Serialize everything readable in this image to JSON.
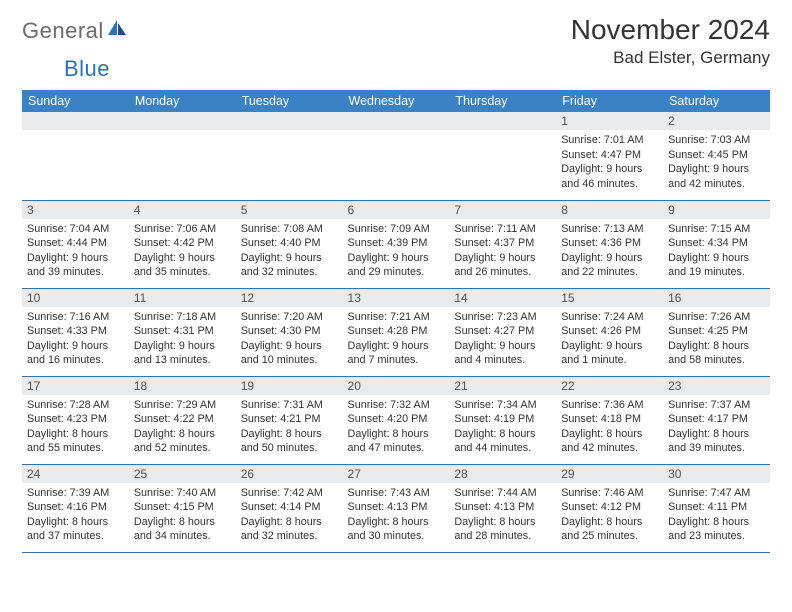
{
  "brand": {
    "word1": "General",
    "word2": "Blue",
    "logo_color": "#2f6fb3"
  },
  "title": "November 2024",
  "location": "Bad Elster, Germany",
  "colors": {
    "header_bg": "#3b82c4",
    "header_fg": "#ffffff",
    "daynum_bg": "#e9eaeb",
    "border": "#3b6fa8",
    "background": "#ffffff"
  },
  "day_labels": [
    "Sunday",
    "Monday",
    "Tuesday",
    "Wednesday",
    "Thursday",
    "Friday",
    "Saturday"
  ],
  "weeks": [
    [
      null,
      null,
      null,
      null,
      null,
      {
        "n": "1",
        "sr": "Sunrise: 7:01 AM",
        "ss": "Sunset: 4:47 PM",
        "d1": "Daylight: 9 hours",
        "d2": "and 46 minutes."
      },
      {
        "n": "2",
        "sr": "Sunrise: 7:03 AM",
        "ss": "Sunset: 4:45 PM",
        "d1": "Daylight: 9 hours",
        "d2": "and 42 minutes."
      }
    ],
    [
      {
        "n": "3",
        "sr": "Sunrise: 7:04 AM",
        "ss": "Sunset: 4:44 PM",
        "d1": "Daylight: 9 hours",
        "d2": "and 39 minutes."
      },
      {
        "n": "4",
        "sr": "Sunrise: 7:06 AM",
        "ss": "Sunset: 4:42 PM",
        "d1": "Daylight: 9 hours",
        "d2": "and 35 minutes."
      },
      {
        "n": "5",
        "sr": "Sunrise: 7:08 AM",
        "ss": "Sunset: 4:40 PM",
        "d1": "Daylight: 9 hours",
        "d2": "and 32 minutes."
      },
      {
        "n": "6",
        "sr": "Sunrise: 7:09 AM",
        "ss": "Sunset: 4:39 PM",
        "d1": "Daylight: 9 hours",
        "d2": "and 29 minutes."
      },
      {
        "n": "7",
        "sr": "Sunrise: 7:11 AM",
        "ss": "Sunset: 4:37 PM",
        "d1": "Daylight: 9 hours",
        "d2": "and 26 minutes."
      },
      {
        "n": "8",
        "sr": "Sunrise: 7:13 AM",
        "ss": "Sunset: 4:36 PM",
        "d1": "Daylight: 9 hours",
        "d2": "and 22 minutes."
      },
      {
        "n": "9",
        "sr": "Sunrise: 7:15 AM",
        "ss": "Sunset: 4:34 PM",
        "d1": "Daylight: 9 hours",
        "d2": "and 19 minutes."
      }
    ],
    [
      {
        "n": "10",
        "sr": "Sunrise: 7:16 AM",
        "ss": "Sunset: 4:33 PM",
        "d1": "Daylight: 9 hours",
        "d2": "and 16 minutes."
      },
      {
        "n": "11",
        "sr": "Sunrise: 7:18 AM",
        "ss": "Sunset: 4:31 PM",
        "d1": "Daylight: 9 hours",
        "d2": "and 13 minutes."
      },
      {
        "n": "12",
        "sr": "Sunrise: 7:20 AM",
        "ss": "Sunset: 4:30 PM",
        "d1": "Daylight: 9 hours",
        "d2": "and 10 minutes."
      },
      {
        "n": "13",
        "sr": "Sunrise: 7:21 AM",
        "ss": "Sunset: 4:28 PM",
        "d1": "Daylight: 9 hours",
        "d2": "and 7 minutes."
      },
      {
        "n": "14",
        "sr": "Sunrise: 7:23 AM",
        "ss": "Sunset: 4:27 PM",
        "d1": "Daylight: 9 hours",
        "d2": "and 4 minutes."
      },
      {
        "n": "15",
        "sr": "Sunrise: 7:24 AM",
        "ss": "Sunset: 4:26 PM",
        "d1": "Daylight: 9 hours",
        "d2": "and 1 minute."
      },
      {
        "n": "16",
        "sr": "Sunrise: 7:26 AM",
        "ss": "Sunset: 4:25 PM",
        "d1": "Daylight: 8 hours",
        "d2": "and 58 minutes."
      }
    ],
    [
      {
        "n": "17",
        "sr": "Sunrise: 7:28 AM",
        "ss": "Sunset: 4:23 PM",
        "d1": "Daylight: 8 hours",
        "d2": "and 55 minutes."
      },
      {
        "n": "18",
        "sr": "Sunrise: 7:29 AM",
        "ss": "Sunset: 4:22 PM",
        "d1": "Daylight: 8 hours",
        "d2": "and 52 minutes."
      },
      {
        "n": "19",
        "sr": "Sunrise: 7:31 AM",
        "ss": "Sunset: 4:21 PM",
        "d1": "Daylight: 8 hours",
        "d2": "and 50 minutes."
      },
      {
        "n": "20",
        "sr": "Sunrise: 7:32 AM",
        "ss": "Sunset: 4:20 PM",
        "d1": "Daylight: 8 hours",
        "d2": "and 47 minutes."
      },
      {
        "n": "21",
        "sr": "Sunrise: 7:34 AM",
        "ss": "Sunset: 4:19 PM",
        "d1": "Daylight: 8 hours",
        "d2": "and 44 minutes."
      },
      {
        "n": "22",
        "sr": "Sunrise: 7:36 AM",
        "ss": "Sunset: 4:18 PM",
        "d1": "Daylight: 8 hours",
        "d2": "and 42 minutes."
      },
      {
        "n": "23",
        "sr": "Sunrise: 7:37 AM",
        "ss": "Sunset: 4:17 PM",
        "d1": "Daylight: 8 hours",
        "d2": "and 39 minutes."
      }
    ],
    [
      {
        "n": "24",
        "sr": "Sunrise: 7:39 AM",
        "ss": "Sunset: 4:16 PM",
        "d1": "Daylight: 8 hours",
        "d2": "and 37 minutes."
      },
      {
        "n": "25",
        "sr": "Sunrise: 7:40 AM",
        "ss": "Sunset: 4:15 PM",
        "d1": "Daylight: 8 hours",
        "d2": "and 34 minutes."
      },
      {
        "n": "26",
        "sr": "Sunrise: 7:42 AM",
        "ss": "Sunset: 4:14 PM",
        "d1": "Daylight: 8 hours",
        "d2": "and 32 minutes."
      },
      {
        "n": "27",
        "sr": "Sunrise: 7:43 AM",
        "ss": "Sunset: 4:13 PM",
        "d1": "Daylight: 8 hours",
        "d2": "and 30 minutes."
      },
      {
        "n": "28",
        "sr": "Sunrise: 7:44 AM",
        "ss": "Sunset: 4:13 PM",
        "d1": "Daylight: 8 hours",
        "d2": "and 28 minutes."
      },
      {
        "n": "29",
        "sr": "Sunrise: 7:46 AM",
        "ss": "Sunset: 4:12 PM",
        "d1": "Daylight: 8 hours",
        "d2": "and 25 minutes."
      },
      {
        "n": "30",
        "sr": "Sunrise: 7:47 AM",
        "ss": "Sunset: 4:11 PM",
        "d1": "Daylight: 8 hours",
        "d2": "and 23 minutes."
      }
    ]
  ]
}
